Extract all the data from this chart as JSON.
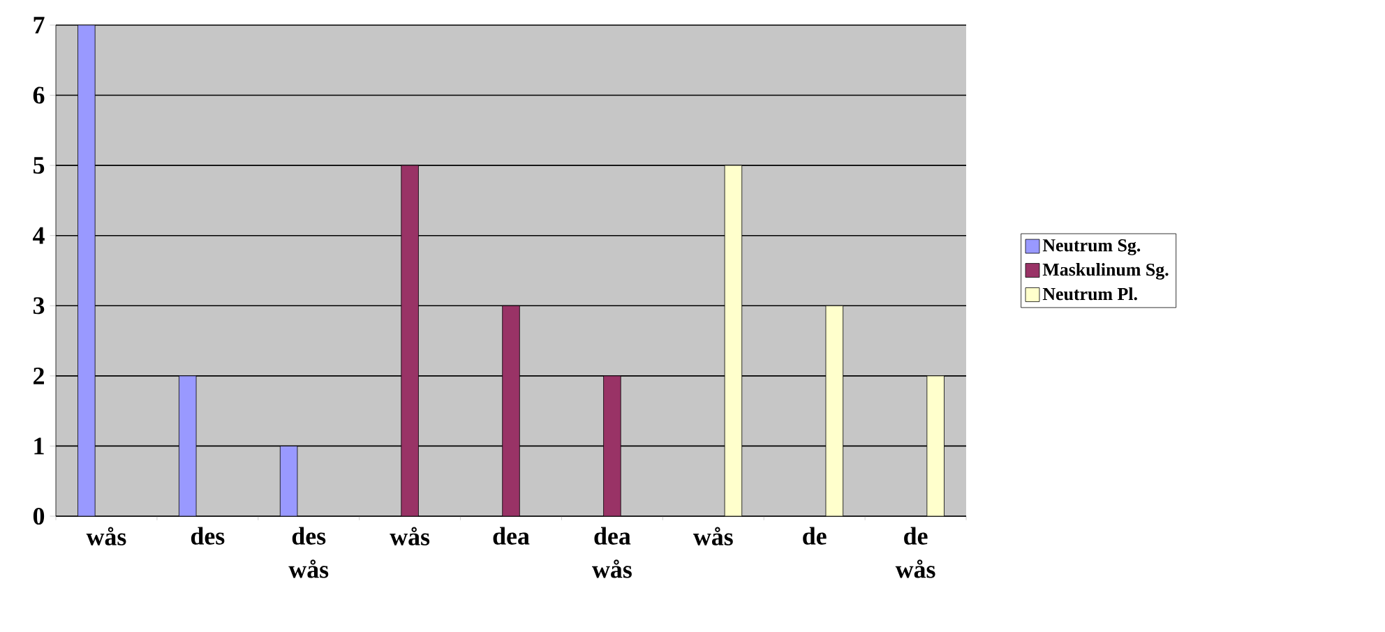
{
  "chart_data": {
    "type": "bar",
    "categories": [
      "wås",
      "des",
      "des wås",
      "wås",
      "dea",
      "dea wås",
      "wås",
      "de",
      "de wås"
    ],
    "series": [
      {
        "name": "Neutrum Sg.",
        "color": "#9999ff",
        "values": [
          7,
          2,
          1,
          null,
          null,
          null,
          null,
          null,
          null
        ]
      },
      {
        "name": "Maskulinum Sg.",
        "color": "#993366",
        "values": [
          null,
          null,
          null,
          5,
          3,
          2,
          null,
          null,
          null
        ]
      },
      {
        "name": "Neutrum Pl.",
        "color": "#ffffcc",
        "values": [
          null,
          null,
          null,
          null,
          null,
          null,
          5,
          3,
          2
        ]
      }
    ],
    "ylim": [
      0,
      7
    ],
    "yticks": [
      0,
      1,
      2,
      3,
      4,
      5,
      6,
      7
    ],
    "grid": "y",
    "legend": "right"
  }
}
